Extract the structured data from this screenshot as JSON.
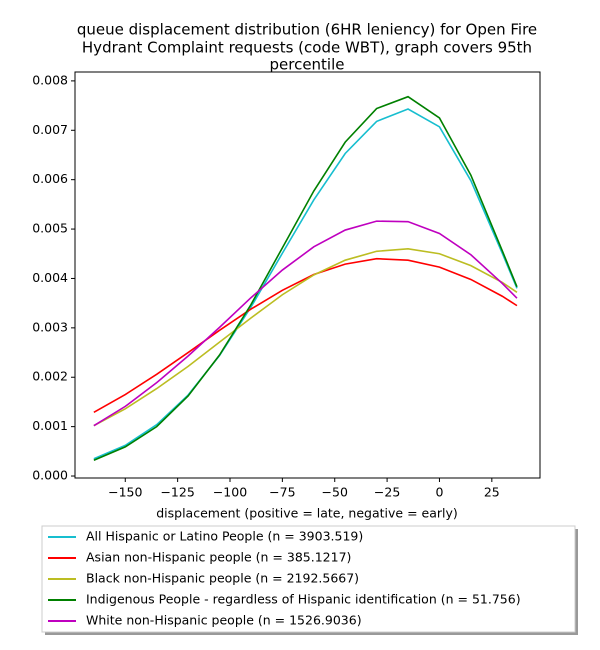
{
  "chart_data": {
    "type": "line",
    "title": [
      "queue displacement distribution (6HR leniency) for Open Fire",
      "Hydrant Complaint  requests (code WBT), graph covers 95th",
      "percentile"
    ],
    "xlabel": "displacement (positive = late, negative = early)",
    "x": [
      -165,
      -150,
      -135,
      -120,
      -105,
      -90,
      -75,
      -60,
      -45,
      -30,
      -15,
      0,
      15,
      30,
      37
    ],
    "series": [
      {
        "name": "All Hispanic or Latino People (n = 3903.519)",
        "color": "#17becf",
        "values": [
          0.00035,
          0.00062,
          0.00104,
          0.00164,
          0.00244,
          0.00342,
          0.00451,
          0.00559,
          0.00653,
          0.00718,
          0.00743,
          0.00707,
          0.00598,
          0.00451,
          0.0038
        ]
      },
      {
        "name": "Asian non-Hispanic people (n = 385.1217)",
        "color": "#ff0000",
        "values": [
          0.00129,
          0.00165,
          0.00206,
          0.0025,
          0.00295,
          0.00338,
          0.00376,
          0.00408,
          0.00429,
          0.0044,
          0.00437,
          0.00423,
          0.00398,
          0.00364,
          0.00345
        ]
      },
      {
        "name": "Black non-Hispanic people (n = 2192.5667)",
        "color": "#bcbd22",
        "values": [
          0.00102,
          0.00136,
          0.00177,
          0.00222,
          0.00271,
          0.0032,
          0.00367,
          0.00407,
          0.00437,
          0.00455,
          0.0046,
          0.0045,
          0.00426,
          0.00392,
          0.00372
        ]
      },
      {
        "name": "Indigenous People - regardless of Hispanic identification (n = 51.756)",
        "color": "#008000",
        "values": [
          0.00032,
          0.00059,
          0.001,
          0.00162,
          0.00245,
          0.00347,
          0.00462,
          0.00577,
          0.00676,
          0.00744,
          0.00768,
          0.00725,
          0.00609,
          0.00456,
          0.00383
        ]
      },
      {
        "name": "White non-Hispanic people (n = 1526.9036)",
        "color": "#bf00bf",
        "values": [
          0.00102,
          0.00141,
          0.00189,
          0.00243,
          0.00301,
          0.00361,
          0.00417,
          0.00464,
          0.00498,
          0.00516,
          0.00515,
          0.00491,
          0.00448,
          0.0039,
          0.0036
        ]
      }
    ],
    "xlim": [
      -174,
      48
    ],
    "ylim": [
      -4e-05,
      0.00818
    ],
    "xticks": [
      {
        "value": -150,
        "label": "−150"
      },
      {
        "value": -125,
        "label": "−125"
      },
      {
        "value": -100,
        "label": "−100"
      },
      {
        "value": -75,
        "label": "−75"
      },
      {
        "value": -50,
        "label": "−50"
      },
      {
        "value": -25,
        "label": "−25"
      },
      0,
      25
    ],
    "yticks": [
      {
        "value": 0,
        "label": "0.000"
      },
      0.001,
      0.002,
      0.003,
      0.004,
      0.005,
      0.006,
      0.007,
      0.008
    ],
    "legend": "below"
  }
}
